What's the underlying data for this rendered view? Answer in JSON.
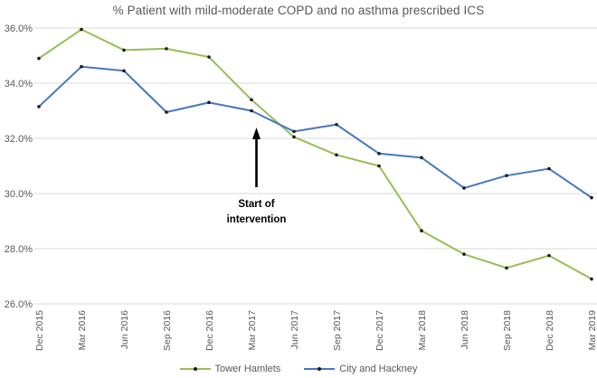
{
  "chart_data": {
    "type": "line",
    "title": "% Patient with mild-moderate COPD and no asthma prescribed ICS",
    "categories": [
      "Dec 2015",
      "Mar 2016",
      "Jun 2016",
      "Sep 2016",
      "Dec 2016",
      "Mar 2017",
      "Jun 2017",
      "Sep 2017",
      "Dec 2017",
      "Mar 2018",
      "Jun 2018",
      "Sep 2018",
      "Dec 2018",
      "Mar 2019"
    ],
    "series": [
      {
        "name": "Tower Hamlets",
        "color": "#96BE55",
        "values": [
          34.9,
          35.95,
          35.2,
          35.25,
          34.95,
          33.4,
          32.05,
          31.4,
          31.0,
          28.65,
          27.8,
          27.3,
          27.75,
          26.9
        ]
      },
      {
        "name": "City and Hackney",
        "color": "#4678BE",
        "values": [
          33.15,
          34.6,
          34.45,
          32.95,
          33.3,
          33.0,
          32.25,
          32.5,
          31.45,
          31.3,
          30.2,
          30.65,
          30.9,
          29.85
        ]
      }
    ],
    "ylim": [
      26,
      36
    ],
    "yticks": [
      {
        "value": 36,
        "label": "36.0%"
      },
      {
        "value": 34,
        "label": "34.0%"
      },
      {
        "value": 32,
        "label": "32.0%"
      },
      {
        "value": 30,
        "label": "30.0%"
      },
      {
        "value": 28,
        "label": "28.0%"
      },
      {
        "value": 26,
        "label": "26.0%"
      }
    ],
    "grid": "horizontal",
    "legend_position": "bottom",
    "xlabel": "",
    "ylabel": "",
    "annotation": {
      "lines": [
        "Start of",
        "intervention"
      ],
      "target_category": "Mar 2017",
      "arrow_direction": "up"
    }
  },
  "style_colors": {
    "gridline": "#D9D9D9",
    "axis_text": "#595959",
    "title_text": "#595959",
    "marker": "#1a1a1a",
    "annotation": "#000000"
  }
}
